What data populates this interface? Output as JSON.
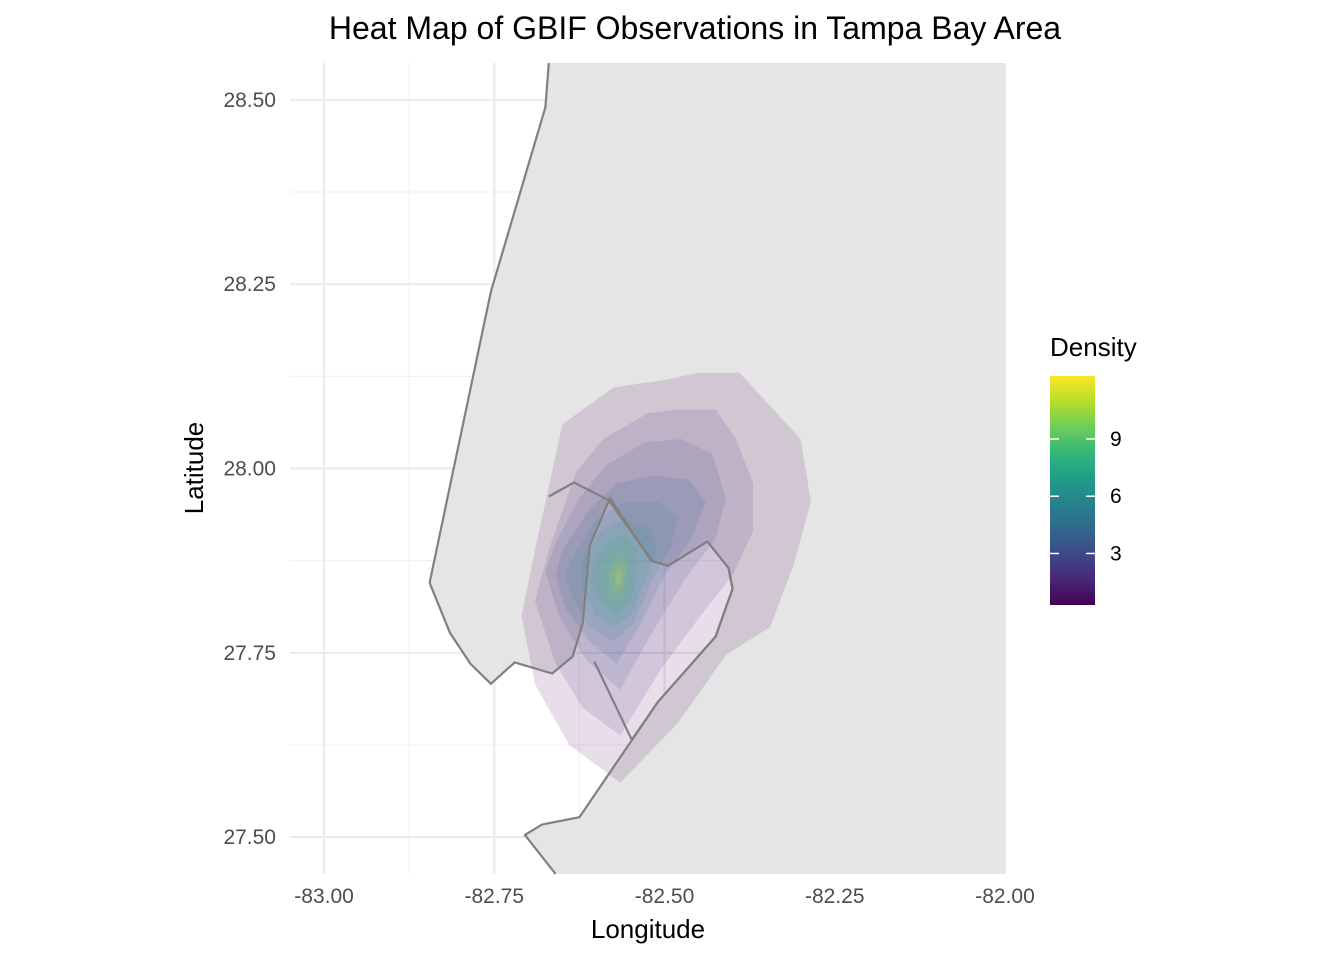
{
  "chart_data": {
    "type": "heatmap",
    "title": "Heat Map of GBIF Observations in Tampa Bay Area",
    "xlabel": "Longitude",
    "ylabel": "Latitude",
    "xlim": [
      -83.05,
      -82.0
    ],
    "ylim": [
      27.45,
      28.55
    ],
    "x_ticks": [
      -83.0,
      -82.75,
      -82.5,
      -82.25,
      -82.0
    ],
    "x_tick_labels": [
      "-83.00",
      "-82.75",
      "-82.50",
      "-82.25",
      "-82.00"
    ],
    "y_ticks": [
      27.5,
      27.75,
      28.0,
      28.25,
      28.5
    ],
    "y_tick_labels": [
      "27.50",
      "27.75",
      "28.00",
      "28.25",
      "28.50"
    ],
    "x_minor_ticks": [
      -82.875,
      -82.625,
      -82.375,
      -82.125
    ],
    "y_minor_ticks": [
      27.625,
      27.875,
      28.125,
      28.375
    ],
    "grid": true,
    "land_fill": "#e5e5e5",
    "outline_color": "#808080",
    "coastline": [
      [
        -82.67,
        28.55
      ],
      [
        -82.675,
        28.49
      ],
      [
        -82.755,
        28.24
      ],
      [
        -82.845,
        27.845
      ],
      [
        -82.815,
        27.777
      ],
      [
        -82.785,
        27.735
      ],
      [
        -82.755,
        27.708
      ],
      [
        -82.72,
        27.737
      ],
      [
        -82.665,
        27.722
      ],
      [
        -82.635,
        27.745
      ],
      [
        -82.62,
        27.79
      ],
      [
        -82.61,
        27.895
      ],
      [
        -82.58,
        27.96
      ],
      [
        -82.52,
        27.875
      ],
      [
        -82.495,
        27.868
      ],
      [
        -82.437,
        27.901
      ],
      [
        -82.406,
        27.865
      ],
      [
        -82.4,
        27.837
      ],
      [
        -82.425,
        27.772
      ],
      [
        -82.51,
        27.683
      ],
      [
        -82.625,
        27.527
      ],
      [
        -82.68,
        27.517
      ],
      [
        -82.705,
        27.503
      ],
      [
        -82.66,
        27.45
      ],
      [
        -82.0,
        27.45
      ],
      [
        -82.0,
        28.55
      ]
    ],
    "old_tampa_bay_outline": [
      [
        -82.67,
        27.962
      ],
      [
        -82.633,
        27.981
      ],
      [
        -82.582,
        27.957
      ],
      [
        -82.518,
        27.875
      ],
      [
        -82.495,
        27.868
      ],
      [
        -82.437,
        27.901
      ],
      [
        -82.406,
        27.865
      ],
      [
        -82.4,
        27.837
      ],
      [
        -82.425,
        27.772
      ],
      [
        -82.51,
        27.683
      ],
      [
        -82.548,
        27.632
      ],
      [
        -82.603,
        27.738
      ]
    ],
    "density_levels": [
      1,
      2,
      3,
      4,
      5,
      6,
      7,
      8,
      9,
      10
    ],
    "density_contours": [
      {
        "level": 1,
        "points": [
          [
            -82.69,
            27.89
          ],
          [
            -82.65,
            28.06
          ],
          [
            -82.575,
            28.11
          ],
          [
            -82.5,
            28.12
          ],
          [
            -82.45,
            28.13
          ],
          [
            -82.39,
            28.13
          ],
          [
            -82.3,
            28.04
          ],
          [
            -82.285,
            27.955
          ],
          [
            -82.31,
            27.87
          ],
          [
            -82.345,
            27.785
          ],
          [
            -82.41,
            27.747
          ],
          [
            -82.48,
            27.655
          ],
          [
            -82.565,
            27.574
          ],
          [
            -82.64,
            27.625
          ],
          [
            -82.69,
            27.707
          ],
          [
            -82.71,
            27.8
          ]
        ]
      },
      {
        "level": 2,
        "points": [
          [
            -82.67,
            27.89
          ],
          [
            -82.63,
            27.995
          ],
          [
            -82.59,
            28.04
          ],
          [
            -82.525,
            28.075
          ],
          [
            -82.48,
            28.08
          ],
          [
            -82.425,
            28.08
          ],
          [
            -82.395,
            28.04
          ],
          [
            -82.37,
            27.98
          ],
          [
            -82.37,
            27.915
          ],
          [
            -82.4,
            27.855
          ],
          [
            -82.45,
            27.797
          ],
          [
            -82.505,
            27.728
          ],
          [
            -82.565,
            27.638
          ],
          [
            -82.62,
            27.675
          ],
          [
            -82.66,
            27.735
          ],
          [
            -82.69,
            27.82
          ]
        ]
      },
      {
        "level": 3,
        "points": [
          [
            -82.66,
            27.9
          ],
          [
            -82.625,
            27.96
          ],
          [
            -82.585,
            28.005
          ],
          [
            -82.53,
            28.035
          ],
          [
            -82.475,
            28.04
          ],
          [
            -82.43,
            28.02
          ],
          [
            -82.41,
            27.96
          ],
          [
            -82.425,
            27.905
          ],
          [
            -82.47,
            27.85
          ],
          [
            -82.52,
            27.775
          ],
          [
            -82.565,
            27.7
          ],
          [
            -82.615,
            27.74
          ],
          [
            -82.655,
            27.8
          ],
          [
            -82.675,
            27.86
          ]
        ]
      },
      {
        "level": 4,
        "points": [
          [
            -82.65,
            27.89
          ],
          [
            -82.61,
            27.945
          ],
          [
            -82.57,
            27.98
          ],
          [
            -82.515,
            27.99
          ],
          [
            -82.465,
            27.985
          ],
          [
            -82.44,
            27.955
          ],
          [
            -82.46,
            27.905
          ],
          [
            -82.5,
            27.855
          ],
          [
            -82.535,
            27.79
          ],
          [
            -82.57,
            27.735
          ],
          [
            -82.61,
            27.765
          ],
          [
            -82.645,
            27.81
          ],
          [
            -82.66,
            27.855
          ]
        ]
      },
      {
        "level": 5,
        "points": [
          [
            -82.635,
            27.88
          ],
          [
            -82.6,
            27.93
          ],
          [
            -82.56,
            27.955
          ],
          [
            -82.51,
            27.955
          ],
          [
            -82.48,
            27.935
          ],
          [
            -82.49,
            27.895
          ],
          [
            -82.52,
            27.845
          ],
          [
            -82.545,
            27.79
          ],
          [
            -82.575,
            27.765
          ],
          [
            -82.61,
            27.785
          ],
          [
            -82.635,
            27.825
          ],
          [
            -82.645,
            27.855
          ]
        ]
      },
      {
        "level": 6,
        "points": [
          [
            -82.62,
            27.875
          ],
          [
            -82.595,
            27.915
          ],
          [
            -82.56,
            27.93
          ],
          [
            -82.525,
            27.92
          ],
          [
            -82.51,
            27.89
          ],
          [
            -82.53,
            27.845
          ],
          [
            -82.55,
            27.8
          ],
          [
            -82.575,
            27.785
          ],
          [
            -82.6,
            27.8
          ],
          [
            -82.62,
            27.835
          ]
        ]
      },
      {
        "level": 7,
        "points": [
          [
            -82.605,
            27.87
          ],
          [
            -82.585,
            27.9
          ],
          [
            -82.56,
            27.91
          ],
          [
            -82.54,
            27.895
          ],
          [
            -82.54,
            27.86
          ],
          [
            -82.55,
            27.82
          ],
          [
            -82.57,
            27.8
          ],
          [
            -82.59,
            27.815
          ],
          [
            -82.605,
            27.84
          ]
        ]
      },
      {
        "level": 8,
        "points": [
          [
            -82.593,
            27.865
          ],
          [
            -82.578,
            27.888
          ],
          [
            -82.56,
            27.893
          ],
          [
            -82.55,
            27.875
          ],
          [
            -82.552,
            27.845
          ],
          [
            -82.56,
            27.818
          ],
          [
            -82.575,
            27.812
          ],
          [
            -82.588,
            27.83
          ]
        ]
      },
      {
        "level": 9,
        "points": [
          [
            -82.582,
            27.86
          ],
          [
            -82.57,
            27.877
          ],
          [
            -82.56,
            27.878
          ],
          [
            -82.556,
            27.858
          ],
          [
            -82.562,
            27.835
          ],
          [
            -82.572,
            27.828
          ],
          [
            -82.58,
            27.842
          ]
        ]
      },
      {
        "level": 10,
        "points": [
          [
            -82.574,
            27.856
          ],
          [
            -82.566,
            27.866
          ],
          [
            -82.561,
            27.858
          ],
          [
            -82.564,
            27.842
          ],
          [
            -82.571,
            27.84
          ]
        ]
      }
    ],
    "legend": {
      "title": "Density",
      "placement": "right",
      "labels": [
        "9",
        "6",
        "3"
      ],
      "values": [
        9,
        6,
        3
      ],
      "range": [
        0.3,
        12.3
      ],
      "colormap": "viridis",
      "colors": [
        "#440154",
        "#482878",
        "#3e4989",
        "#31688e",
        "#26828e",
        "#1f9e89",
        "#35b779",
        "#6ece58",
        "#b5de2b",
        "#fde725"
      ]
    },
    "fill_opacity": 0.13
  }
}
